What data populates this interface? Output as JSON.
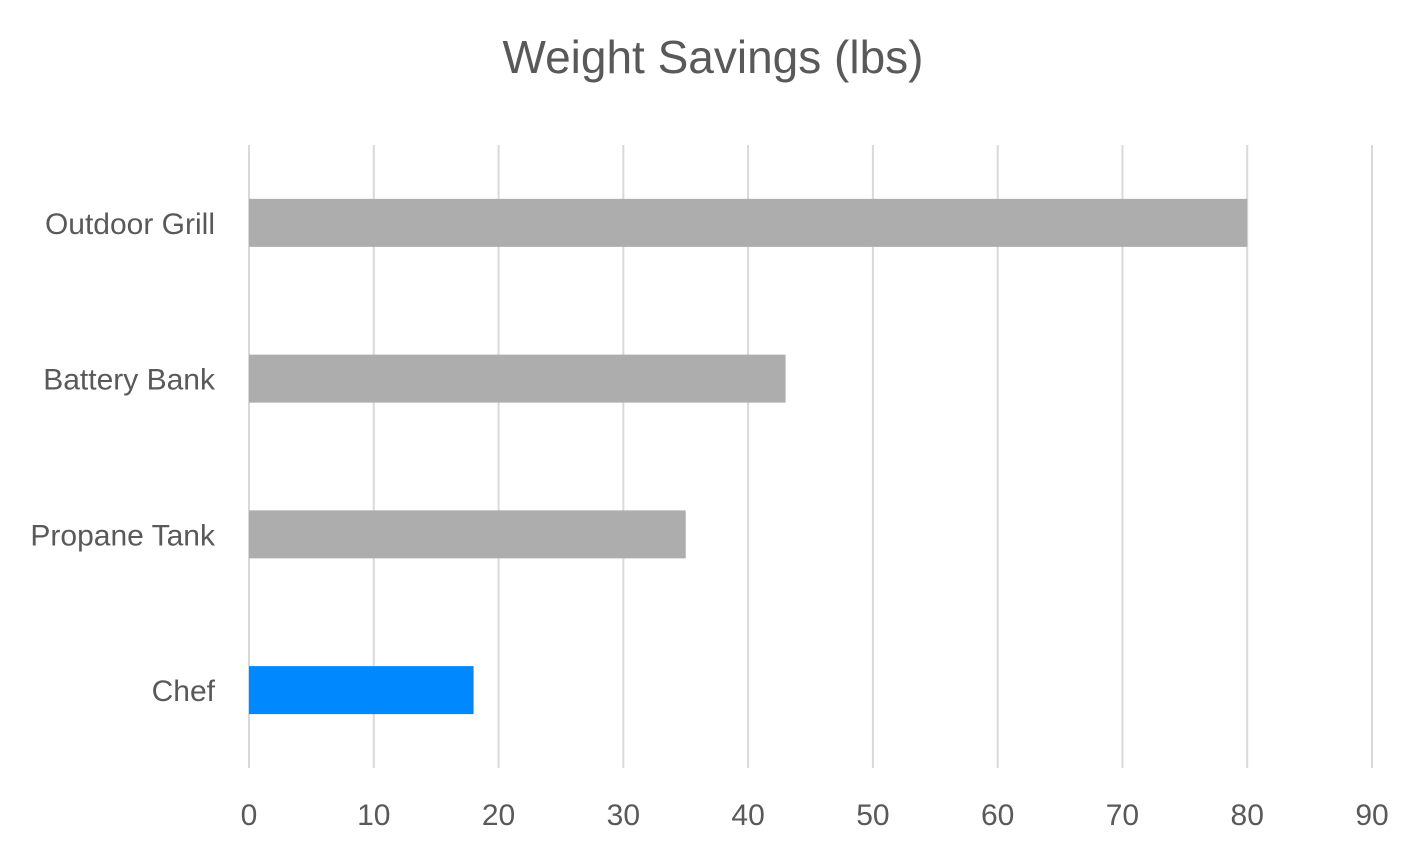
{
  "chart_data": {
    "type": "bar",
    "orientation": "horizontal",
    "title": "Weight Savings (lbs)",
    "categories": [
      "Outdoor Grill",
      "Battery Bank",
      "Propane Tank",
      "Chef"
    ],
    "values": [
      80,
      43,
      35,
      18
    ],
    "bar_colors": [
      "#ADADAD",
      "#ADADAD",
      "#ADADAD",
      "#0088FF"
    ],
    "xlim": [
      0,
      90
    ],
    "x_ticks": [
      0,
      10,
      20,
      30,
      40,
      50,
      60,
      70,
      80,
      90
    ],
    "grid": "vertical",
    "grid_color": "#D9D9D9",
    "text_color": "#595959",
    "legend": "none"
  }
}
